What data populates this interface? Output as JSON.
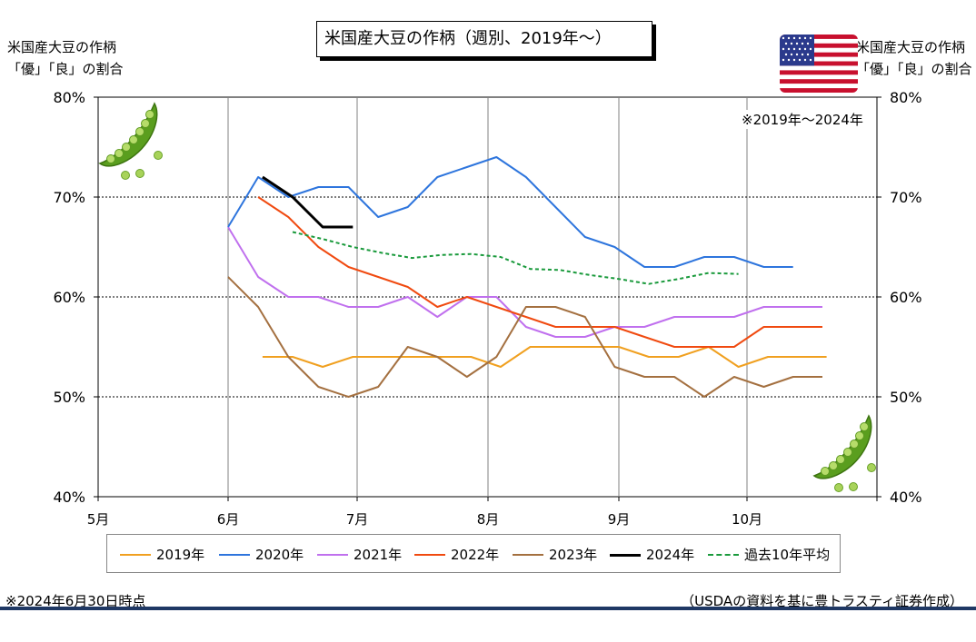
{
  "title": "米国産大豆の作柄（週別、2019年～）",
  "left_axis_title": [
    "米国産大豆の作柄",
    "「優」「良」の割合"
  ],
  "right_axis_title": [
    "米国産大豆の作柄",
    "「優」「良」の割合"
  ],
  "period_note": "※2019年～2024年",
  "date_note": "※2024年6月30日時点",
  "source_note": "（USDAの資料を基に豊トラスティ証券作成）",
  "icons": {
    "flag": "us-flag-icon",
    "pea": "pea-pod-icon"
  },
  "colors": {
    "bottom_rule": "#1f3864"
  },
  "chart_data": {
    "type": "line",
    "x_tick_labels": [
      "5月",
      "6月",
      "7月",
      "8月",
      "9月",
      "10月"
    ],
    "y_tick_labels": [
      "40%",
      "50%",
      "60%",
      "70%",
      "80%"
    ],
    "y_tick_values": [
      40,
      50,
      60,
      70,
      80
    ],
    "ylim": [
      40,
      80
    ],
    "xlim": [
      "5/1",
      "11/1"
    ],
    "grid": {
      "horizontal": "dotted at 50, 60, 70",
      "vertical": "at each month"
    },
    "legend_position": "bottom",
    "series": [
      {
        "name": "2019年",
        "color": "#f0a020",
        "dash": false,
        "x": [
          "6/9",
          "6/16",
          "6/23",
          "6/30",
          "7/7",
          "7/14",
          "7/21",
          "7/28",
          "8/4",
          "8/11",
          "8/18",
          "8/25",
          "9/1",
          "9/8",
          "9/15",
          "9/22",
          "9/29",
          "10/6",
          "10/13",
          "10/20"
        ],
        "values": [
          54,
          54,
          53,
          54,
          54,
          54,
          54,
          54,
          53,
          55,
          55,
          55,
          55,
          54,
          54,
          55,
          53,
          54,
          54,
          54
        ]
      },
      {
        "name": "2020年",
        "color": "#2e75dd",
        "dash": false,
        "x": [
          "6/1",
          "6/8",
          "6/15",
          "6/22",
          "6/29",
          "7/6",
          "7/13",
          "7/20",
          "7/27",
          "8/3",
          "8/10",
          "8/17",
          "8/24",
          "8/31",
          "9/7",
          "9/14",
          "9/21",
          "9/28",
          "10/5",
          "10/12"
        ],
        "values": [
          67,
          72,
          70,
          71,
          71,
          68,
          69,
          72,
          73,
          74,
          72,
          69,
          66,
          65,
          63,
          63,
          64,
          64,
          63,
          63
        ]
      },
      {
        "name": "2021年",
        "color": "#c070ee",
        "dash": false,
        "x": [
          "6/1",
          "6/8",
          "6/15",
          "6/22",
          "6/29",
          "7/6",
          "7/13",
          "7/20",
          "7/27",
          "8/3",
          "8/10",
          "8/17",
          "8/24",
          "8/31",
          "9/7",
          "9/14",
          "9/21",
          "9/28",
          "10/5",
          "10/12",
          "10/19"
        ],
        "values": [
          67,
          62,
          60,
          60,
          59,
          59,
          60,
          58,
          60,
          60,
          57,
          56,
          56,
          57,
          57,
          58,
          58,
          58,
          59,
          59,
          59
        ]
      },
      {
        "name": "2022年",
        "color": "#f04a10",
        "dash": false,
        "x": [
          "6/8",
          "6/15",
          "6/22",
          "6/29",
          "7/6",
          "7/13",
          "7/20",
          "7/27",
          "8/3",
          "8/10",
          "8/17",
          "8/24",
          "8/31",
          "9/7",
          "9/14",
          "9/21",
          "9/28",
          "10/5",
          "10/12",
          "10/19"
        ],
        "values": [
          70,
          68,
          65,
          63,
          62,
          61,
          59,
          60,
          59,
          58,
          57,
          57,
          57,
          56,
          55,
          55,
          55,
          57,
          57,
          57
        ]
      },
      {
        "name": "2023年",
        "color": "#a47040",
        "dash": false,
        "x": [
          "6/1",
          "6/8",
          "6/15",
          "6/22",
          "6/29",
          "7/6",
          "7/13",
          "7/20",
          "7/27",
          "8/3",
          "8/10",
          "8/17",
          "8/24",
          "8/31",
          "9/7",
          "9/14",
          "9/21",
          "9/28",
          "10/5",
          "10/12",
          "10/19"
        ],
        "values": [
          62,
          59,
          54,
          51,
          50,
          51,
          55,
          54,
          52,
          54,
          59,
          59,
          58,
          53,
          52,
          52,
          50,
          52,
          51,
          52,
          52
        ]
      },
      {
        "name": "2024年",
        "color": "#000000",
        "dash": false,
        "x": [
          "6/9",
          "6/16",
          "6/23",
          "6/30"
        ],
        "values": [
          72,
          70,
          67,
          67
        ]
      },
      {
        "name": "過去10年平均",
        "color": "#1a9a3c",
        "dash": true,
        "x": [
          "6/16",
          "6/23",
          "6/30",
          "7/7",
          "7/14",
          "7/21",
          "7/28",
          "8/4",
          "8/11",
          "8/18",
          "8/25",
          "9/1",
          "9/8",
          "9/15",
          "9/22",
          "9/29"
        ],
        "values": [
          66.5,
          65.8,
          65,
          64.4,
          63.9,
          64.2,
          64.3,
          64,
          62.8,
          62.7,
          62.2,
          61.8,
          61.3,
          61.8,
          62.4,
          62.3
        ]
      }
    ]
  }
}
